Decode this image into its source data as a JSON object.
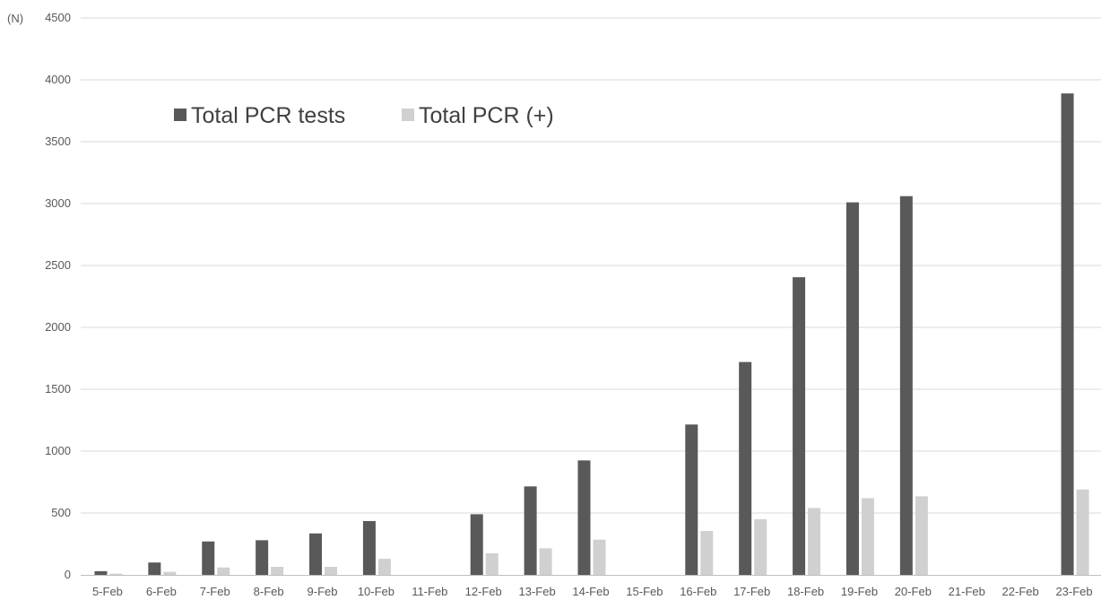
{
  "chart_data": {
    "type": "bar",
    "y_unit_label": "(N)",
    "ylim": [
      0,
      4500
    ],
    "y_ticks": [
      0,
      500,
      1000,
      1500,
      2000,
      2500,
      3000,
      3500,
      4000,
      4500
    ],
    "grid": true,
    "legend_position": "top-left",
    "categories": [
      "5-Feb",
      "6-Feb",
      "7-Feb",
      "8-Feb",
      "9-Feb",
      "10-Feb",
      "11-Feb",
      "12-Feb",
      "13-Feb",
      "14-Feb",
      "15-Feb",
      "16-Feb",
      "17-Feb",
      "18-Feb",
      "19-Feb",
      "20-Feb",
      "21-Feb",
      "22-Feb",
      "23-Feb"
    ],
    "series": [
      {
        "name": "Total PCR tests",
        "color": "#595959",
        "values": [
          30,
          100,
          270,
          280,
          335,
          435,
          null,
          490,
          715,
          925,
          null,
          1215,
          1720,
          2405,
          3010,
          3060,
          null,
          null,
          3890
        ]
      },
      {
        "name": "Total PCR (+)",
        "color": "#d0d0d0",
        "values": [
          10,
          25,
          60,
          65,
          65,
          130,
          null,
          175,
          215,
          285,
          null,
          355,
          450,
          540,
          620,
          635,
          null,
          null,
          690
        ]
      }
    ]
  }
}
